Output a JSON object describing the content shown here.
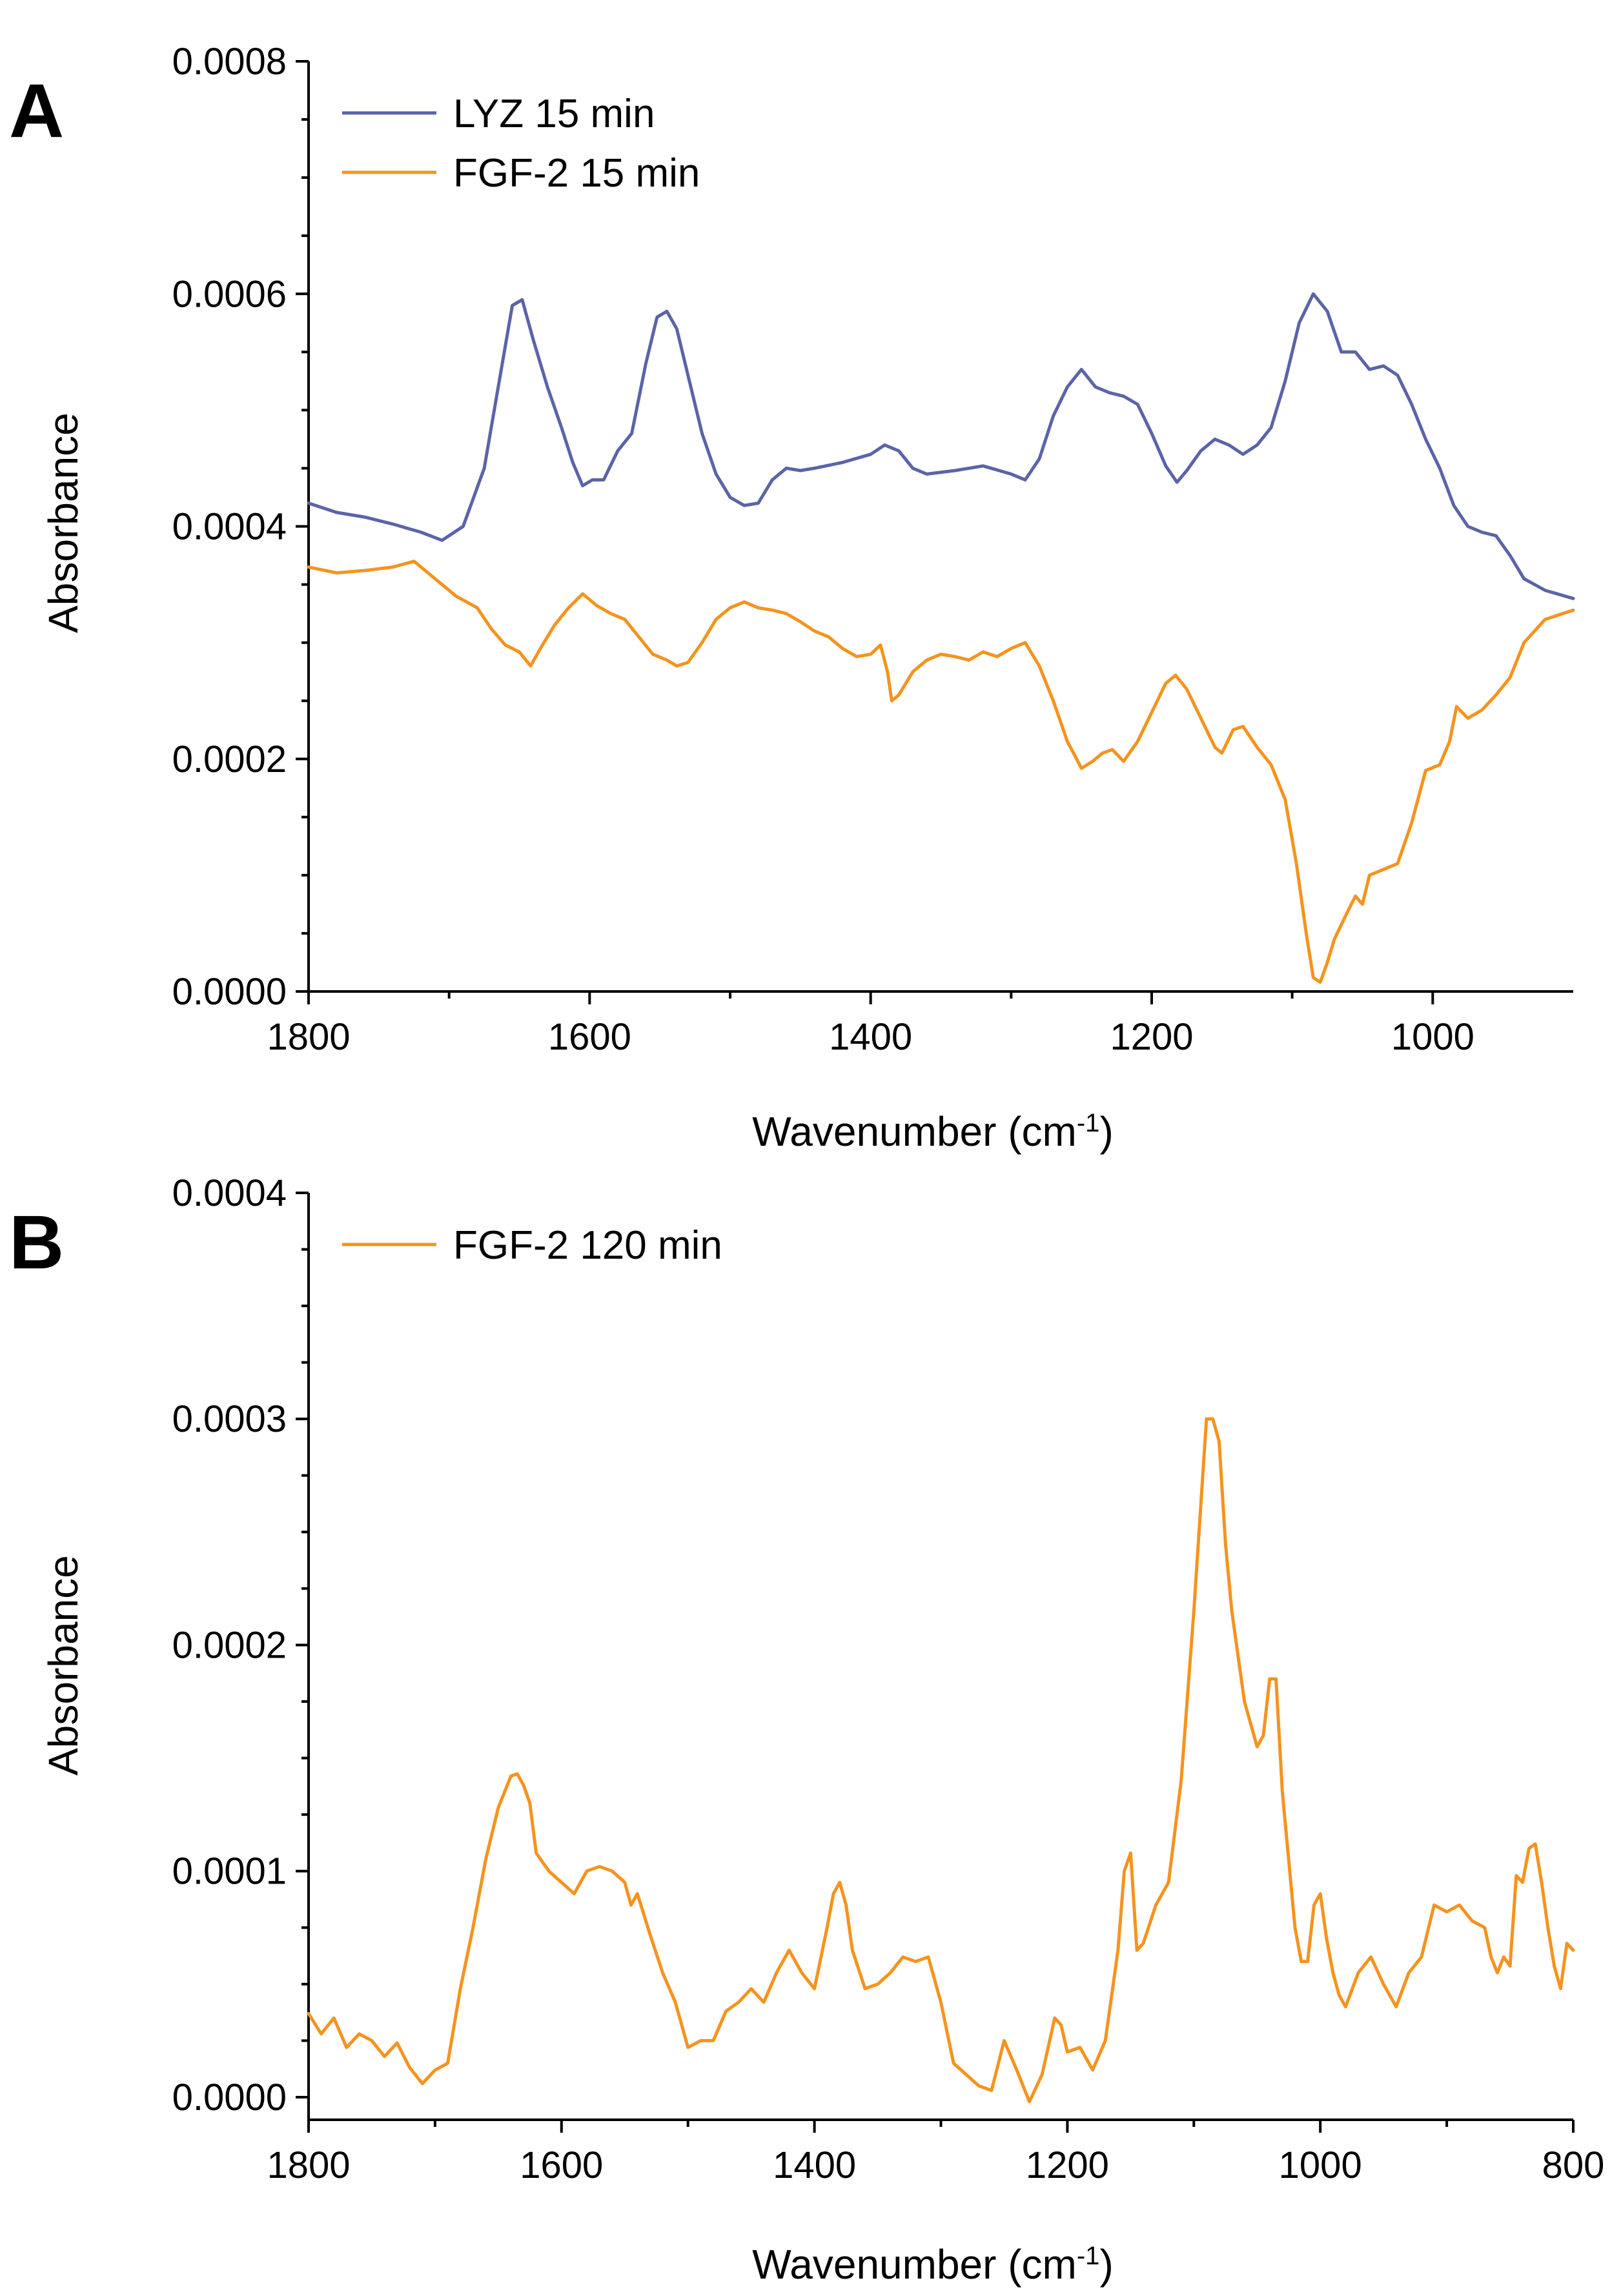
{
  "chart_data": [
    {
      "panel": "A",
      "type": "line",
      "title": "",
      "xlabel": "Wavenumber (cm",
      "xlabel_sup": "-1",
      "xlabel_end": ")",
      "ylabel": "Absorbance",
      "xlim": [
        1800,
        900
      ],
      "ylim": [
        0,
        0.0008
      ],
      "x_ticks": [
        1800,
        1600,
        1400,
        1200,
        1000
      ],
      "x_tick_labels": [
        "1800",
        "1600",
        "1400",
        "1200",
        "1000"
      ],
      "y_ticks": [
        0,
        0.0002,
        0.0004,
        0.0006,
        0.0008
      ],
      "y_tick_labels": [
        "0.0000",
        "0.0002",
        "0.0004",
        "0.0006",
        "0.0008"
      ],
      "legend_position": "top-left",
      "series": [
        {
          "name": "LYZ 15 min",
          "color": "#5b63a8",
          "x": [
            1800,
            1780,
            1760,
            1740,
            1720,
            1705,
            1690,
            1675,
            1665,
            1655,
            1648,
            1640,
            1630,
            1620,
            1612,
            1605,
            1598,
            1590,
            1580,
            1570,
            1560,
            1552,
            1545,
            1538,
            1530,
            1520,
            1510,
            1500,
            1490,
            1480,
            1470,
            1460,
            1450,
            1440,
            1420,
            1400,
            1390,
            1380,
            1370,
            1360,
            1340,
            1320,
            1300,
            1290,
            1280,
            1270,
            1260,
            1250,
            1240,
            1230,
            1220,
            1210,
            1200,
            1190,
            1182,
            1175,
            1165,
            1155,
            1145,
            1135,
            1125,
            1115,
            1105,
            1095,
            1085,
            1075,
            1065,
            1055,
            1045,
            1035,
            1025,
            1015,
            1005,
            995,
            985,
            975,
            965,
            955,
            945,
            935,
            920,
            900
          ],
          "y": [
            0.00042,
            0.000412,
            0.000408,
            0.000402,
            0.000395,
            0.000388,
            0.0004,
            0.00045,
            0.00052,
            0.00059,
            0.000595,
            0.00056,
            0.00052,
            0.000485,
            0.000455,
            0.000435,
            0.00044,
            0.00044,
            0.000465,
            0.00048,
            0.00054,
            0.00058,
            0.000585,
            0.00057,
            0.00053,
            0.00048,
            0.000445,
            0.000425,
            0.000418,
            0.00042,
            0.00044,
            0.00045,
            0.000448,
            0.00045,
            0.000455,
            0.000462,
            0.00047,
            0.000465,
            0.00045,
            0.000445,
            0.000448,
            0.000452,
            0.000445,
            0.00044,
            0.000458,
            0.000495,
            0.00052,
            0.000535,
            0.00052,
            0.000515,
            0.000512,
            0.000505,
            0.00048,
            0.000452,
            0.000438,
            0.000448,
            0.000465,
            0.000475,
            0.00047,
            0.000462,
            0.00047,
            0.000485,
            0.000525,
            0.000575,
            0.0006,
            0.000585,
            0.00055,
            0.00055,
            0.000535,
            0.000538,
            0.00053,
            0.000505,
            0.000475,
            0.00045,
            0.000418,
            0.0004,
            0.000395,
            0.000392,
            0.000375,
            0.000355,
            0.000345,
            0.000338
          ]
        },
        {
          "name": "FGF-2 15 min",
          "color": "#f5931e",
          "x": [
            1800,
            1780,
            1760,
            1740,
            1725,
            1710,
            1695,
            1680,
            1670,
            1660,
            1650,
            1642,
            1635,
            1625,
            1615,
            1605,
            1595,
            1585,
            1575,
            1565,
            1555,
            1545,
            1538,
            1530,
            1520,
            1510,
            1500,
            1490,
            1480,
            1470,
            1460,
            1450,
            1440,
            1430,
            1420,
            1410,
            1400,
            1393,
            1388,
            1385,
            1380,
            1370,
            1360,
            1350,
            1340,
            1330,
            1320,
            1310,
            1300,
            1290,
            1280,
            1270,
            1260,
            1250,
            1242,
            1235,
            1228,
            1220,
            1210,
            1200,
            1190,
            1183,
            1175,
            1165,
            1155,
            1150,
            1142,
            1135,
            1125,
            1115,
            1105,
            1097,
            1090,
            1085,
            1080,
            1075,
            1070,
            1060,
            1055,
            1050,
            1045,
            1035,
            1025,
            1015,
            1005,
            995,
            988,
            983,
            975,
            965,
            955,
            945,
            935,
            920,
            900
          ],
          "y": [
            0.000365,
            0.00036,
            0.000362,
            0.000365,
            0.00037,
            0.000355,
            0.00034,
            0.00033,
            0.000312,
            0.000298,
            0.000292,
            0.00028,
            0.000295,
            0.000315,
            0.00033,
            0.000342,
            0.000332,
            0.000325,
            0.00032,
            0.000305,
            0.00029,
            0.000285,
            0.00028,
            0.000283,
            0.0003,
            0.00032,
            0.00033,
            0.000335,
            0.00033,
            0.000328,
            0.000325,
            0.000318,
            0.00031,
            0.000305,
            0.000295,
            0.000288,
            0.00029,
            0.000298,
            0.000275,
            0.00025,
            0.000255,
            0.000275,
            0.000285,
            0.00029,
            0.000288,
            0.000285,
            0.000292,
            0.000288,
            0.000295,
            0.0003,
            0.00028,
            0.00025,
            0.000215,
            0.000192,
            0.000198,
            0.000205,
            0.000208,
            0.000198,
            0.000215,
            0.00024,
            0.000265,
            0.000272,
            0.00026,
            0.000235,
            0.00021,
            0.000205,
            0.000225,
            0.000228,
            0.00021,
            0.000195,
            0.000165,
            0.00011,
            5e-05,
            1.2e-05,
            8e-06,
            2.5e-05,
            4.5e-05,
            7e-05,
            8.2e-05,
            7.5e-05,
            0.0001,
            0.000105,
            0.00011,
            0.000145,
            0.00019,
            0.000195,
            0.000215,
            0.000245,
            0.000235,
            0.000242,
            0.000255,
            0.00027,
            0.0003,
            0.00032,
            0.000328
          ]
        }
      ]
    },
    {
      "panel": "B",
      "type": "line",
      "title": "",
      "xlabel": "Wavenumber (cm",
      "xlabel_sup": "-1",
      "xlabel_end": ")",
      "ylabel": "Absorbance",
      "xlim": [
        1800,
        800
      ],
      "ylim": [
        -1e-05,
        0.0004
      ],
      "x_ticks": [
        1800,
        1600,
        1400,
        1200,
        1000,
        800
      ],
      "x_tick_labels": [
        "1800",
        "1600",
        "1400",
        "1200",
        "1000",
        "800"
      ],
      "y_ticks": [
        0,
        0.0001,
        0.0002,
        0.0003,
        0.0004
      ],
      "y_tick_labels": [
        "0.0000",
        "0.0001",
        "0.0002",
        "0.0003",
        "0.0004"
      ],
      "legend_position": "top-left",
      "series": [
        {
          "name": "FGF-2 120 min",
          "color": "#f5931e",
          "x": [
            1800,
            1790,
            1780,
            1770,
            1760,
            1750,
            1740,
            1730,
            1720,
            1710,
            1700,
            1690,
            1680,
            1670,
            1660,
            1650,
            1640,
            1635,
            1630,
            1625,
            1620,
            1610,
            1600,
            1590,
            1580,
            1570,
            1560,
            1550,
            1545,
            1540,
            1530,
            1520,
            1510,
            1500,
            1490,
            1480,
            1470,
            1460,
            1450,
            1440,
            1430,
            1420,
            1410,
            1400,
            1390,
            1385,
            1380,
            1375,
            1370,
            1360,
            1350,
            1340,
            1330,
            1320,
            1310,
            1300,
            1290,
            1280,
            1270,
            1260,
            1250,
            1240,
            1230,
            1220,
            1210,
            1205,
            1200,
            1190,
            1180,
            1170,
            1160,
            1155,
            1150,
            1145,
            1140,
            1130,
            1120,
            1110,
            1100,
            1090,
            1085,
            1080,
            1075,
            1070,
            1065,
            1060,
            1050,
            1045,
            1040,
            1035,
            1030,
            1020,
            1015,
            1010,
            1005,
            1000,
            995,
            990,
            985,
            980,
            970,
            960,
            950,
            940,
            930,
            920,
            910,
            900,
            890,
            880,
            870,
            865,
            860,
            855,
            850,
            845,
            840,
            835,
            830,
            825,
            820,
            815,
            810,
            805,
            800
          ],
          "y": [
            3.7e-05,
            2.8e-05,
            3.5e-05,
            2.2e-05,
            2.8e-05,
            2.5e-05,
            1.8e-05,
            2.4e-05,
            1.3e-05,
            6e-06,
            1.2e-05,
            1.5e-05,
            4.8e-05,
            7.5e-05,
            0.000105,
            0.000128,
            0.000142,
            0.000143,
            0.000138,
            0.00013,
            0.000108,
            0.0001,
            9.5e-05,
            9e-05,
            0.0001,
            0.000102,
            0.0001,
            9.5e-05,
            8.5e-05,
            9e-05,
            7.2e-05,
            5.5e-05,
            4.2e-05,
            2.2e-05,
            2.5e-05,
            2.5e-05,
            3.8e-05,
            4.2e-05,
            4.8e-05,
            4.2e-05,
            5.5e-05,
            6.5e-05,
            5.5e-05,
            4.8e-05,
            7.5e-05,
            9e-05,
            9.5e-05,
            8.5e-05,
            6.5e-05,
            4.8e-05,
            5e-05,
            5.5e-05,
            6.2e-05,
            6e-05,
            6.2e-05,
            4.2e-05,
            1.5e-05,
            1e-05,
            5e-06,
            3e-06,
            2.5e-05,
            1.2e-05,
            -2e-06,
            1e-05,
            3.5e-05,
            3.2e-05,
            2e-05,
            2.2e-05,
            1.2e-05,
            2.5e-05,
            6.5e-05,
            0.0001,
            0.000108,
            6.5e-05,
            6.8e-05,
            8.5e-05,
            9.5e-05,
            0.00014,
            0.000215,
            0.0003,
            0.0003,
            0.00029,
            0.000245,
            0.000215,
            0.000195,
            0.000175,
            0.000155,
            0.00016,
            0.000185,
            0.000185,
            0.000135,
            7.5e-05,
            6e-05,
            6e-05,
            8.5e-05,
            9e-05,
            7e-05,
            5.5e-05,
            4.5e-05,
            4e-05,
            5.5e-05,
            6.2e-05,
            5e-05,
            4e-05,
            5.5e-05,
            6.2e-05,
            8.5e-05,
            8.2e-05,
            8.5e-05,
            7.8e-05,
            7.5e-05,
            6.2e-05,
            5.5e-05,
            6.2e-05,
            5.8e-05,
            9.8e-05,
            9.5e-05,
            0.00011,
            0.000112,
            9.5e-05,
            7.5e-05,
            5.8e-05,
            4.8e-05,
            6.8e-05,
            6.5e-05
          ]
        }
      ]
    }
  ],
  "labels": {
    "panel_a": "A",
    "panel_b": "B"
  }
}
